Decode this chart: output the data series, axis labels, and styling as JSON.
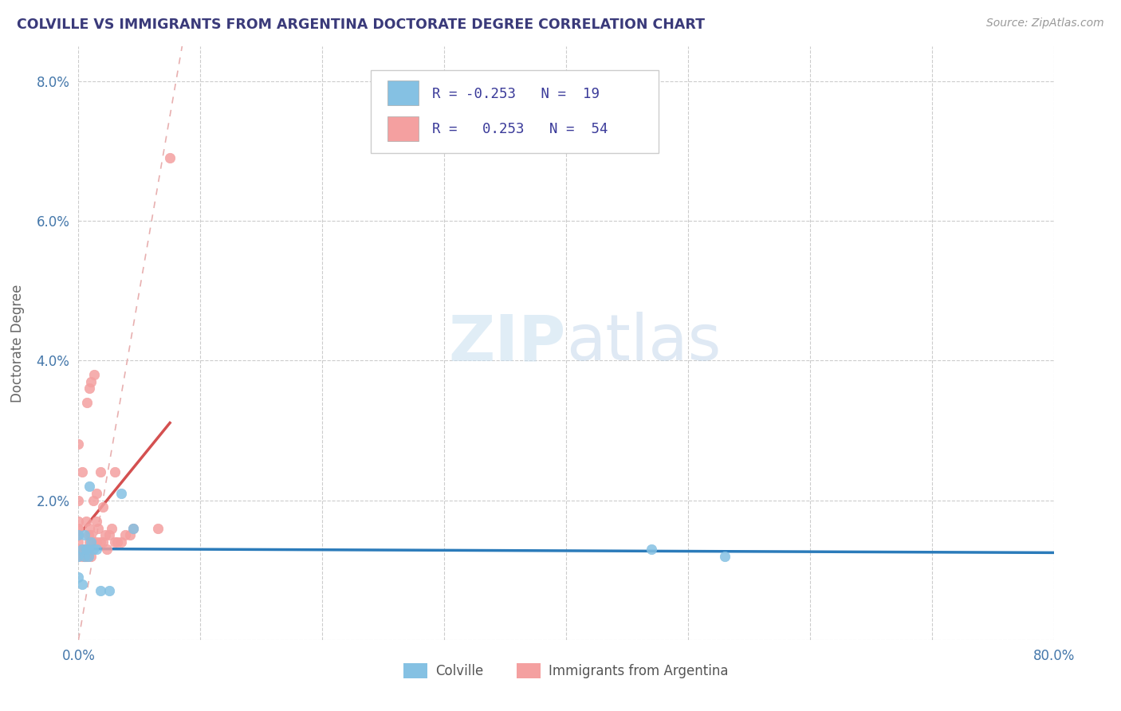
{
  "title": "COLVILLE VS IMMIGRANTS FROM ARGENTINA DOCTORATE DEGREE CORRELATION CHART",
  "source": "Source: ZipAtlas.com",
  "ylabel_label": "Doctorate Degree",
  "xlim": [
    0,
    0.8
  ],
  "ylim": [
    0,
    0.085
  ],
  "x_tick_positions": [
    0.0,
    0.1,
    0.2,
    0.3,
    0.4,
    0.5,
    0.6,
    0.7,
    0.8
  ],
  "x_tick_labels": [
    "0.0%",
    "",
    "",
    "",
    "",
    "",
    "",
    "",
    "80.0%"
  ],
  "y_tick_positions": [
    0.0,
    0.02,
    0.04,
    0.06,
    0.08
  ],
  "y_tick_labels": [
    "",
    "2.0%",
    "4.0%",
    "6.0%",
    "8.0%"
  ],
  "colville_color": "#85c1e3",
  "argentina_color": "#f4a0a0",
  "trendline_colville_color": "#2b7bba",
  "trendline_argentina_color": "#d45050",
  "diagonal_color": "#e8b0b0",
  "watermark_zip": "ZIP",
  "watermark_atlas": "atlas",
  "colville_x": [
    0.0,
    0.0,
    0.0,
    0.003,
    0.003,
    0.005,
    0.005,
    0.006,
    0.007,
    0.008,
    0.009,
    0.01,
    0.012,
    0.015,
    0.018,
    0.025,
    0.035,
    0.045,
    0.47,
    0.53
  ],
  "colville_y": [
    0.009,
    0.012,
    0.015,
    0.008,
    0.013,
    0.012,
    0.015,
    0.013,
    0.013,
    0.012,
    0.022,
    0.014,
    0.013,
    0.013,
    0.007,
    0.007,
    0.021,
    0.016,
    0.013,
    0.012
  ],
  "argentina_x": [
    0.0,
    0.0,
    0.0,
    0.0,
    0.0,
    0.0,
    0.0,
    0.0,
    0.0,
    0.0,
    0.0,
    0.003,
    0.003,
    0.003,
    0.005,
    0.005,
    0.005,
    0.006,
    0.006,
    0.007,
    0.007,
    0.007,
    0.008,
    0.008,
    0.009,
    0.009,
    0.009,
    0.01,
    0.01,
    0.01,
    0.012,
    0.012,
    0.013,
    0.015,
    0.015,
    0.015,
    0.016,
    0.018,
    0.018,
    0.02,
    0.02,
    0.022,
    0.023,
    0.025,
    0.027,
    0.03,
    0.03,
    0.032,
    0.035,
    0.038,
    0.042,
    0.045,
    0.065,
    0.075
  ],
  "argentina_y": [
    0.012,
    0.013,
    0.013,
    0.014,
    0.015,
    0.015,
    0.016,
    0.016,
    0.017,
    0.02,
    0.028,
    0.012,
    0.013,
    0.024,
    0.012,
    0.013,
    0.013,
    0.012,
    0.017,
    0.012,
    0.013,
    0.034,
    0.013,
    0.015,
    0.014,
    0.016,
    0.036,
    0.012,
    0.015,
    0.037,
    0.014,
    0.02,
    0.038,
    0.014,
    0.017,
    0.021,
    0.016,
    0.014,
    0.024,
    0.014,
    0.019,
    0.015,
    0.013,
    0.015,
    0.016,
    0.014,
    0.024,
    0.014,
    0.014,
    0.015,
    0.015,
    0.016,
    0.016,
    0.069
  ]
}
